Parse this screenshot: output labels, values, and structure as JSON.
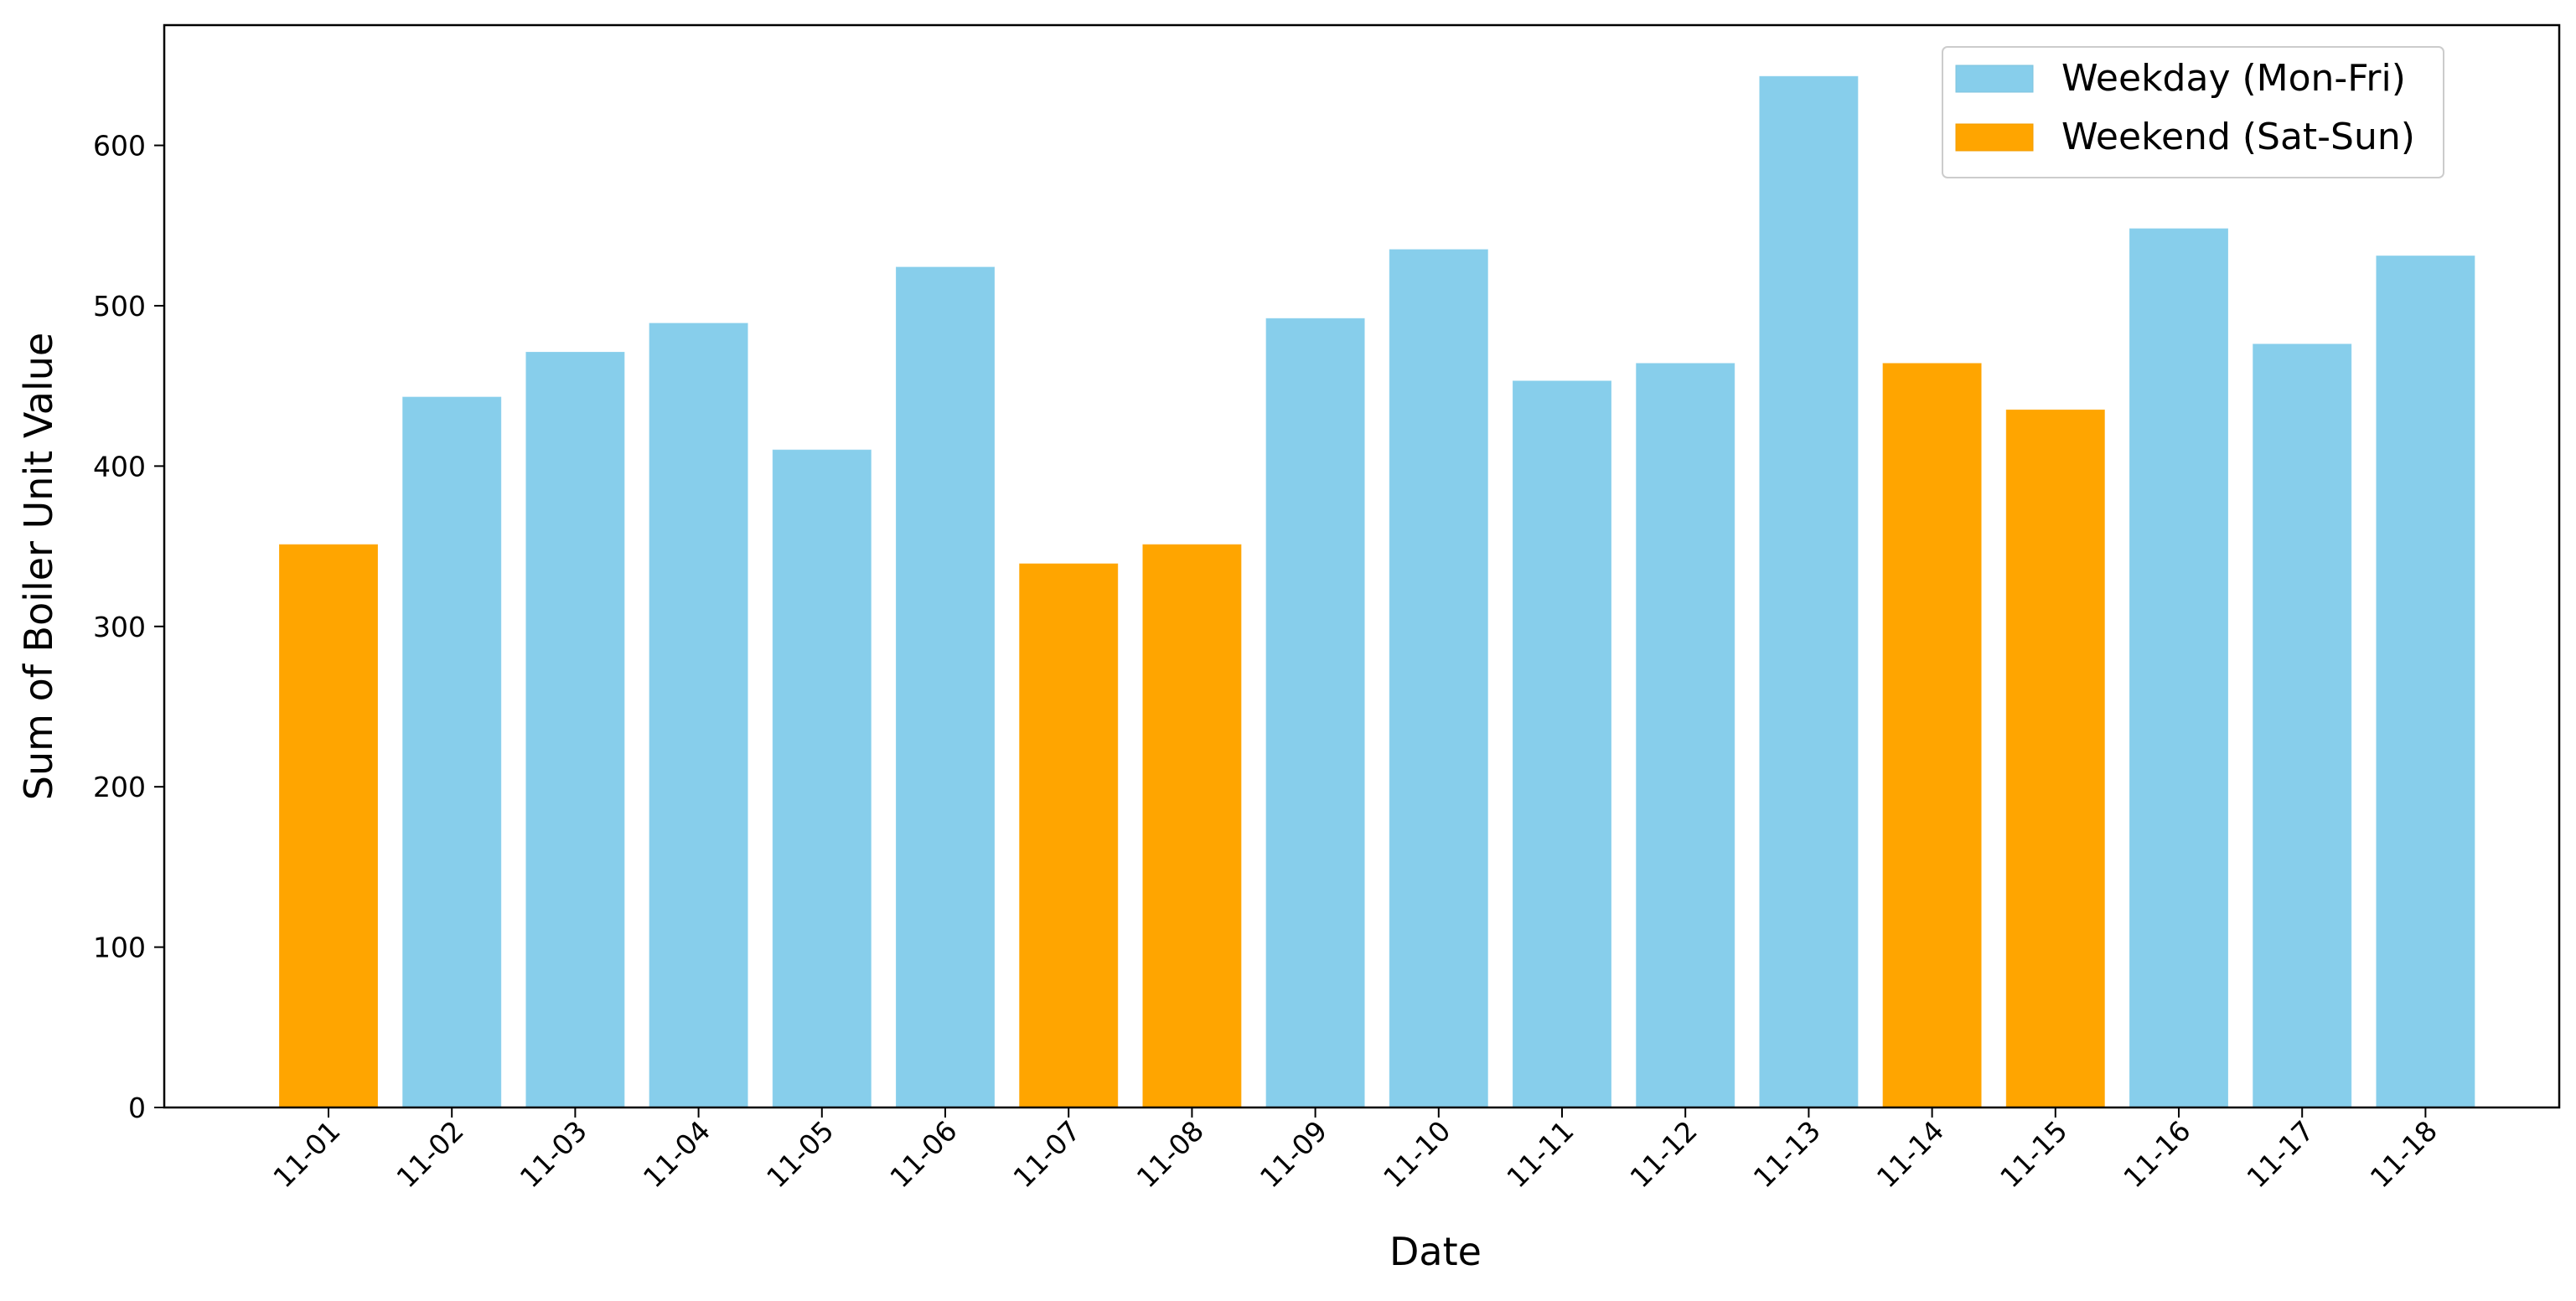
{
  "chart_data": {
    "type": "bar",
    "title": "",
    "xlabel": "Date",
    "ylabel": "Sum of Boiler Unit Value",
    "categories": [
      "11-01",
      "11-02",
      "11-03",
      "11-04",
      "11-05",
      "11-06",
      "11-07",
      "11-08",
      "11-09",
      "11-10",
      "11-11",
      "11-12",
      "11-13",
      "11-14",
      "11-15",
      "11-16",
      "11-17",
      "11-18"
    ],
    "values": [
      351,
      443,
      471,
      489,
      410,
      524,
      339,
      351,
      492,
      535,
      453,
      464,
      643,
      464,
      435,
      548,
      476,
      531
    ],
    "groups": [
      "weekend",
      "weekday",
      "weekday",
      "weekday",
      "weekday",
      "weekday",
      "weekend",
      "weekend",
      "weekday",
      "weekday",
      "weekday",
      "weekday",
      "weekday",
      "weekend",
      "weekend",
      "weekday",
      "weekday",
      "weekday"
    ],
    "series": [
      {
        "key": "weekday",
        "name": "Weekday (Mon-Fri)",
        "color": "#87ceeb"
      },
      {
        "key": "weekend",
        "name": "Weekend (Sat-Sun)",
        "color": "#ffa500"
      }
    ],
    "ylim": [
      0,
      675
    ],
    "yticks": [
      0,
      100,
      200,
      300,
      400,
      500,
      600
    ],
    "legend_position": "top-right",
    "grid": false
  }
}
